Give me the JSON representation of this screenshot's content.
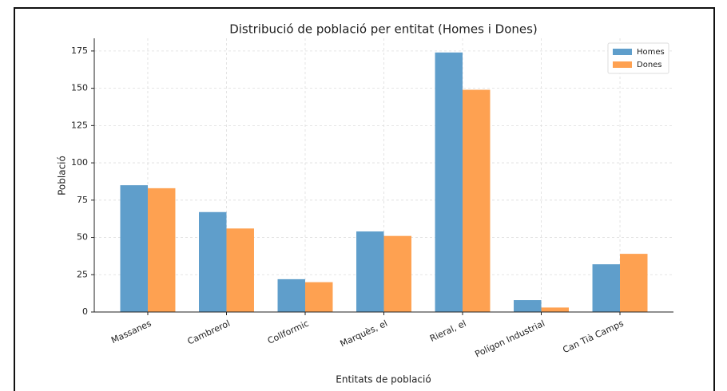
{
  "chart_data": {
    "type": "bar",
    "title": "Distribució de població per entitat (Homes i Dones)",
    "x_label": "Entitats de població",
    "y_label": "Població",
    "categories": [
      "Massanes",
      "Cambrerol",
      "Collformic",
      "Marquès, el",
      "Rieral, el",
      "Polígon Industrial",
      "Can Tià Camps"
    ],
    "series": [
      {
        "name": "Homes",
        "color": "#5f9ecb",
        "values": [
          85,
          67,
          22,
          54,
          174,
          8,
          32
        ]
      },
      {
        "name": "Dones",
        "color": "#fea151",
        "values": [
          83,
          56,
          20,
          51,
          149,
          3,
          39
        ]
      }
    ],
    "ylim": [
      0,
      183.5
    ],
    "yticks": [
      0,
      25,
      50,
      75,
      100,
      125,
      150,
      175
    ],
    "grid": true,
    "legend": "upper right"
  }
}
